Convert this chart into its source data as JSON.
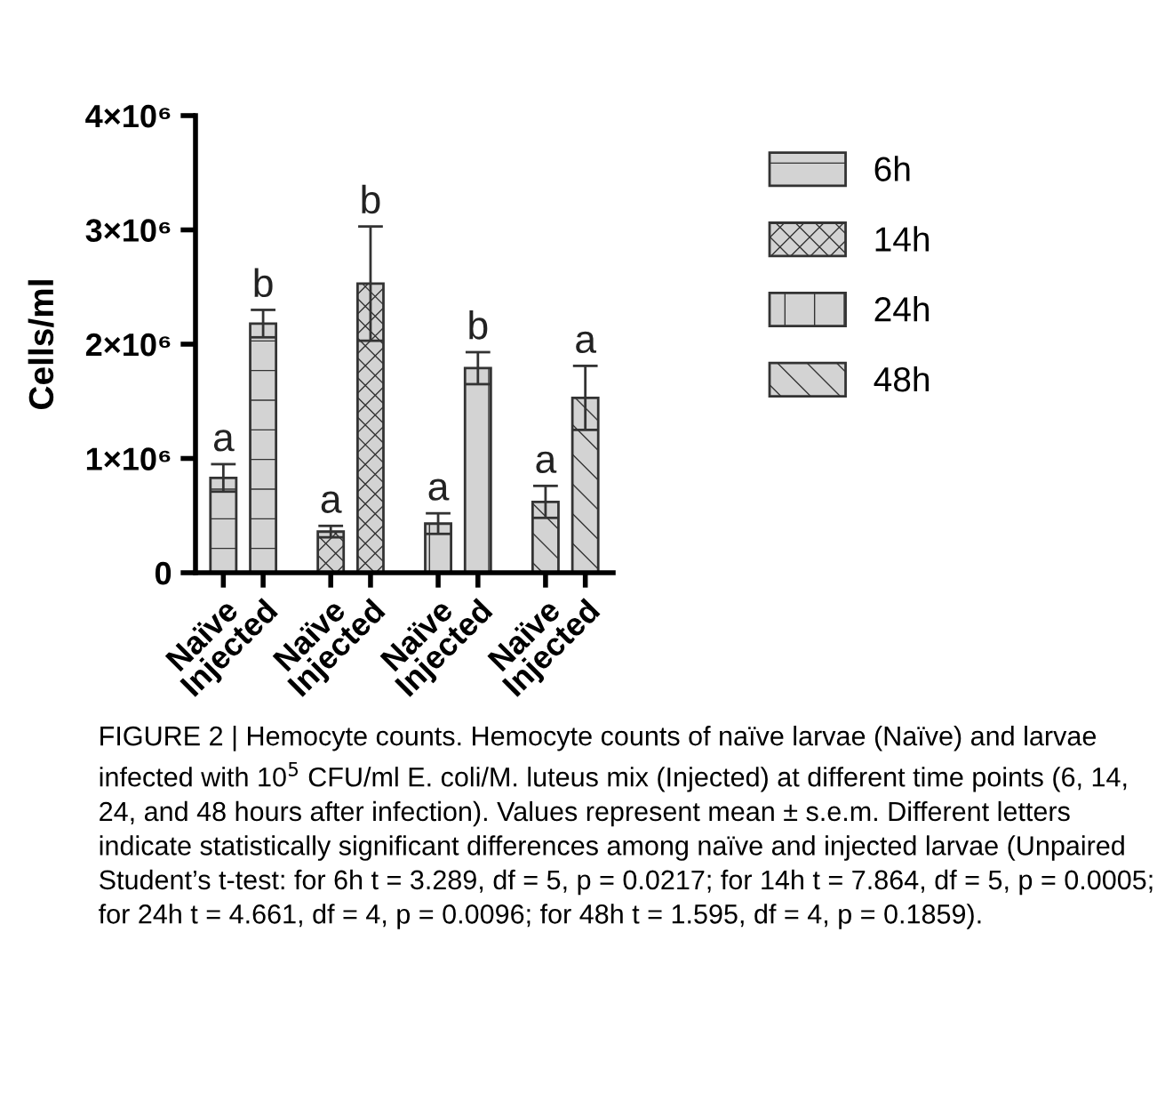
{
  "chart_data": {
    "type": "bar",
    "ylabel": "Cells/ml",
    "categories": [
      "Naïve",
      "Injected",
      "Naïve",
      "Injected",
      "Naïve",
      "Injected",
      "Naïve",
      "Injected"
    ],
    "series": [
      {
        "name": "6h",
        "color": "#d3d3d3",
        "values": [
          830000,
          2180000,
          null,
          null,
          null,
          null,
          null,
          null
        ],
        "errors": [
          120000,
          120000,
          null,
          null,
          null,
          null,
          null,
          null
        ],
        "value_labels": [
          "a",
          "b",
          null,
          null,
          null,
          null,
          null,
          null
        ]
      },
      {
        "name": "14h",
        "color": "#d3d3d3",
        "values": [
          null,
          null,
          360000,
          2530000,
          null,
          null,
          null,
          null
        ],
        "errors": [
          null,
          null,
          50000,
          500000,
          null,
          null,
          null,
          null
        ],
        "value_labels": [
          null,
          null,
          "a",
          "b",
          null,
          null,
          null,
          null
        ]
      },
      {
        "name": "24h",
        "color": "#d3d3d3",
        "values": [
          null,
          null,
          null,
          null,
          430000,
          1790000,
          null,
          null
        ],
        "errors": [
          null,
          null,
          null,
          null,
          90000,
          140000,
          null,
          null
        ],
        "value_labels": [
          null,
          null,
          null,
          null,
          "a",
          "b",
          null,
          null
        ]
      },
      {
        "name": "48h",
        "color": "#d3d3d3",
        "values": [
          null,
          null,
          null,
          null,
          null,
          null,
          620000,
          1530000
        ],
        "errors": [
          null,
          null,
          null,
          null,
          null,
          null,
          140000,
          280000
        ],
        "value_labels": [
          null,
          null,
          null,
          null,
          null,
          null,
          "a",
          "a"
        ]
      }
    ],
    "ylim": [
      0,
      4000000
    ],
    "yticks": [
      0,
      {
        "value": 1000000,
        "label": "1×10⁶"
      },
      {
        "value": 2000000,
        "label": "2×10⁶"
      },
      {
        "value": 3000000,
        "label": "3×10⁶"
      },
      {
        "value": 4000000,
        "label": "4×10⁶"
      }
    ],
    "legend": "right",
    "grid": false,
    "annotations": [
      "FIGURE 2 | Hemocyte counts. Hemocyte counts of naïve larvae (Naïve) and larvae infected with 10$^{5}$ CFU/ml E. coli/M. luteus mix (Injected) at different time points (6, 14, 24, and 48 hours after infection). Values represent mean ± s.e.m. Different letters indicate statistically significant differences among naïve and injected larvae (Unpaired Student’s t-test: for 6h t = 3.289, df = 5, p = 0.0217; for 14h t = 7.864, df = 5, p = 0.0005; for 24h t = 4.661, df = 4, p = 0.0096; for 48h t = 1.595, df = 4, p = 0.1859)."
    ]
  }
}
